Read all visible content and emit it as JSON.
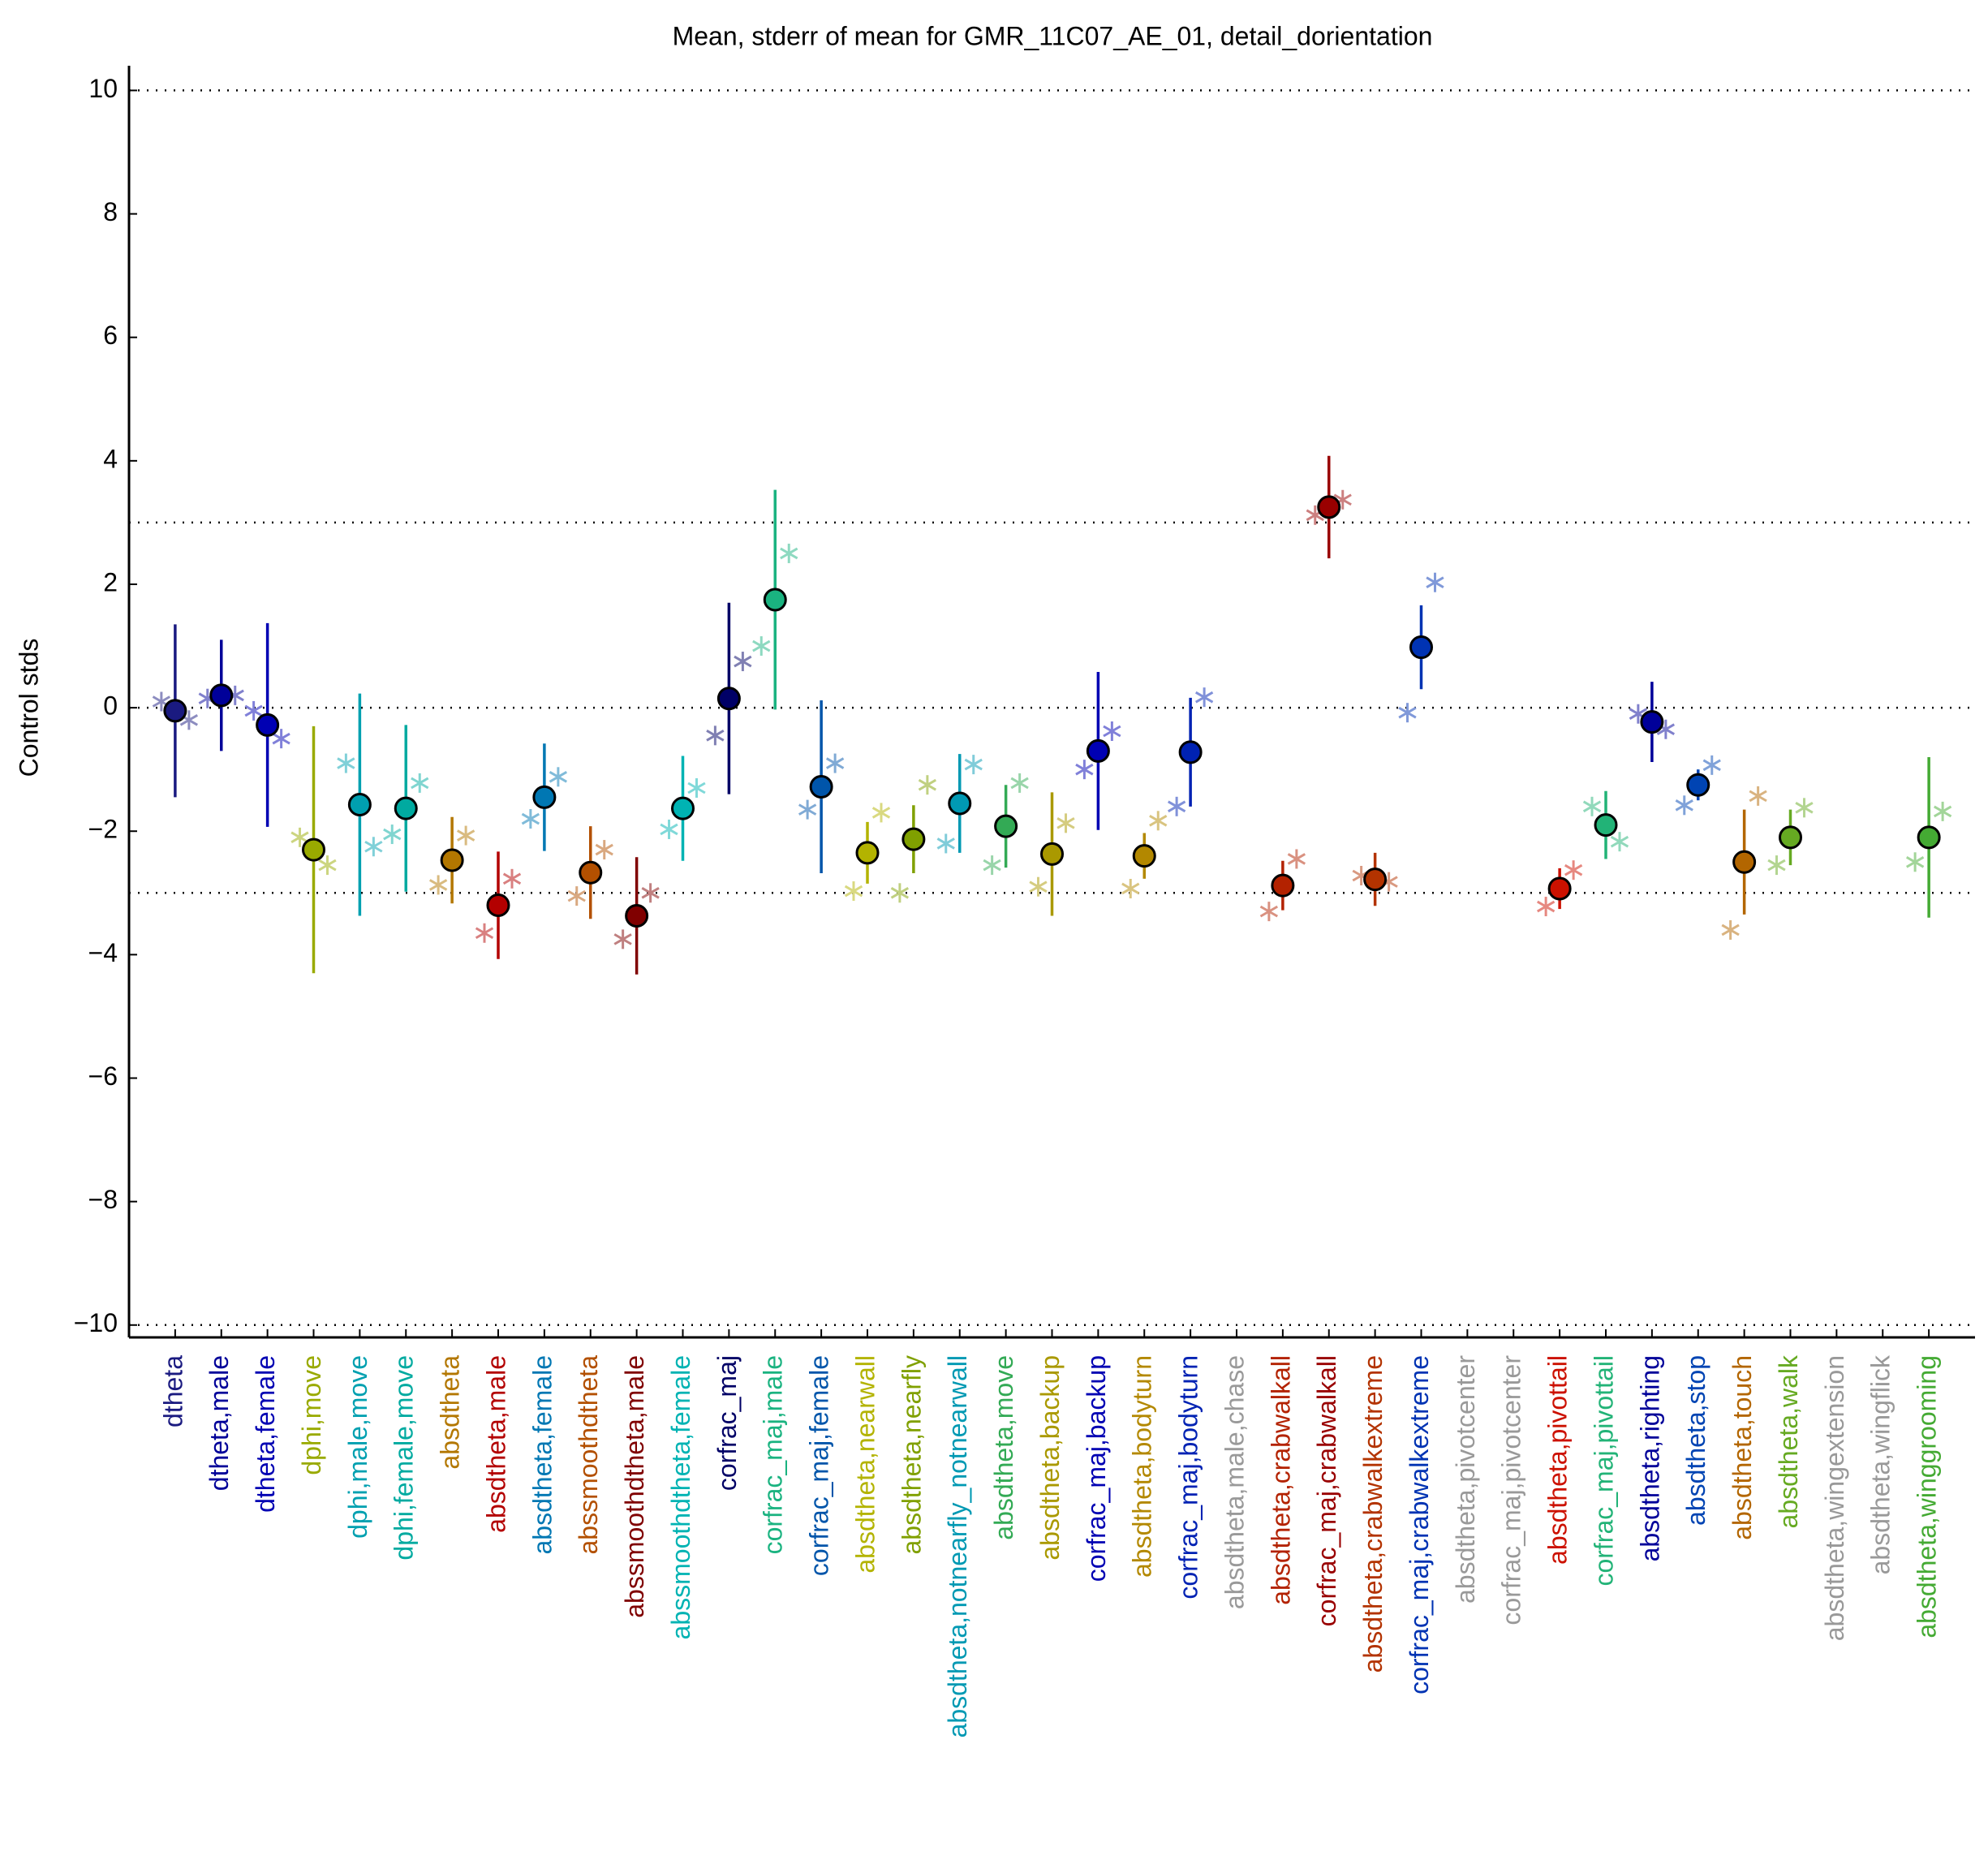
{
  "chart_data": {
    "type": "errorbar",
    "title": "Mean, stderr of mean for GMR_11C07_AE_01, detail_dorientation",
    "ylabel": "Control stds",
    "xlim": [
      0,
      40
    ],
    "ylim": [
      -10.2,
      10.4
    ],
    "yticks": [
      -10,
      -8,
      -6,
      -4,
      -2,
      0,
      2,
      4,
      6,
      8,
      10
    ],
    "hlines": [
      10,
      3,
      0,
      -3,
      -10
    ],
    "categories": [
      "dtheta",
      "dtheta,male",
      "dtheta,female",
      "dphi,move",
      "dphi,male,move",
      "dphi,female,move",
      "absdtheta",
      "absdtheta,male",
      "absdtheta,female",
      "abssmoothdtheta",
      "abssmoothdtheta,male",
      "abssmoothdtheta,female",
      "corfrac_maj",
      "corfrac_maj,male",
      "corfrac_maj,female",
      "absdtheta,nearwall",
      "absdtheta,nearfly",
      "absdtheta,notnearfly_notnearwall",
      "absdtheta,move",
      "absdtheta,backup",
      "corfrac_maj,backup",
      "absdtheta,bodyturn",
      "corfrac_maj,bodyturn",
      "absdtheta,male,chase",
      "absdtheta,crabwalkall",
      "corfrac_maj,crabwalkall",
      "absdtheta,crabwalkextreme",
      "corfrac_maj,crabwalkextreme",
      "absdtheta,pivotcenter",
      "corfrac_maj,pivotcenter",
      "absdtheta,pivottail",
      "corfrac_maj,pivottail",
      "absdtheta,righting",
      "absdtheta,stop",
      "absdtheta,touch",
      "absdtheta,walk",
      "absdtheta,wingextension",
      "absdtheta,wingflick",
      "absdtheta,winggrooming"
    ],
    "colors": [
      "#1a1a80",
      "#000099",
      "#0000b3",
      "#99aa00",
      "#00a0b0",
      "#00aaa0",
      "#b37700",
      "#b30000",
      "#0077b3",
      "#b35000",
      "#800000",
      "#00b3b3",
      "#000066",
      "#1ab380",
      "#0055aa",
      "#b3b300",
      "#80a000",
      "#0099b3",
      "#33aa55",
      "#aa9900",
      "#0000b3",
      "#b38800",
      "#0022b3",
      "#999999",
      "#b32200",
      "#990000",
      "#b33300",
      "#0033b3",
      "#999999",
      "#999999",
      "#cc1100",
      "#22b377",
      "#000099",
      "#0044b3",
      "#b36600",
      "#66aa22",
      "#999999",
      "#999999",
      "#44aa33"
    ],
    "mean": [
      -0.05,
      0.2,
      -0.28,
      -2.3,
      -1.57,
      -1.63,
      -2.47,
      -3.2,
      -1.45,
      -2.67,
      -3.37,
      -1.63,
      0.15,
      1.75,
      -1.28,
      -2.35,
      -2.13,
      -1.55,
      -1.92,
      -2.37,
      -0.7,
      -2.4,
      -0.72,
      null,
      -2.88,
      3.25,
      -2.78,
      0.98,
      null,
      null,
      -2.93,
      -1.9,
      -0.23,
      -1.25,
      -2.5,
      -2.1,
      null,
      null,
      -2.1
    ],
    "err": [
      1.4,
      0.9,
      1.65,
      2.0,
      1.8,
      1.35,
      0.7,
      0.87,
      0.87,
      0.75,
      0.95,
      0.85,
      1.55,
      1.78,
      1.4,
      0.5,
      0.55,
      0.8,
      0.67,
      1.0,
      1.28,
      0.37,
      0.88,
      null,
      0.4,
      0.83,
      0.43,
      0.68,
      null,
      null,
      0.33,
      0.55,
      0.65,
      0.25,
      0.85,
      0.45,
      null,
      null,
      1.3
    ],
    "star_left": [
      0.1,
      0.15,
      -0.05,
      -2.1,
      -0.9,
      -2.05,
      -2.87,
      -3.65,
      -1.8,
      -3.05,
      -3.75,
      -1.97,
      -0.45,
      1.0,
      -1.65,
      -2.97,
      -3.0,
      -2.2,
      -2.55,
      -2.9,
      -1.0,
      -2.93,
      -1.6,
      null,
      -3.3,
      3.12,
      -2.72,
      -0.08,
      null,
      null,
      -3.22,
      -1.6,
      -0.1,
      -1.58,
      -3.6,
      -2.55,
      null,
      null,
      -2.5
    ],
    "star_right": [
      -0.2,
      0.2,
      -0.5,
      -2.55,
      -2.25,
      -1.22,
      -2.07,
      -2.77,
      -1.12,
      -2.3,
      -3.0,
      -1.3,
      0.75,
      2.5,
      -0.9,
      -1.7,
      -1.25,
      -0.92,
      -1.22,
      -1.87,
      -0.38,
      -1.83,
      0.17,
      null,
      -2.45,
      3.37,
      -2.82,
      2.03,
      null,
      null,
      -2.63,
      -2.17,
      -0.35,
      -0.93,
      -1.43,
      -1.62,
      null,
      null,
      -1.68
    ]
  }
}
